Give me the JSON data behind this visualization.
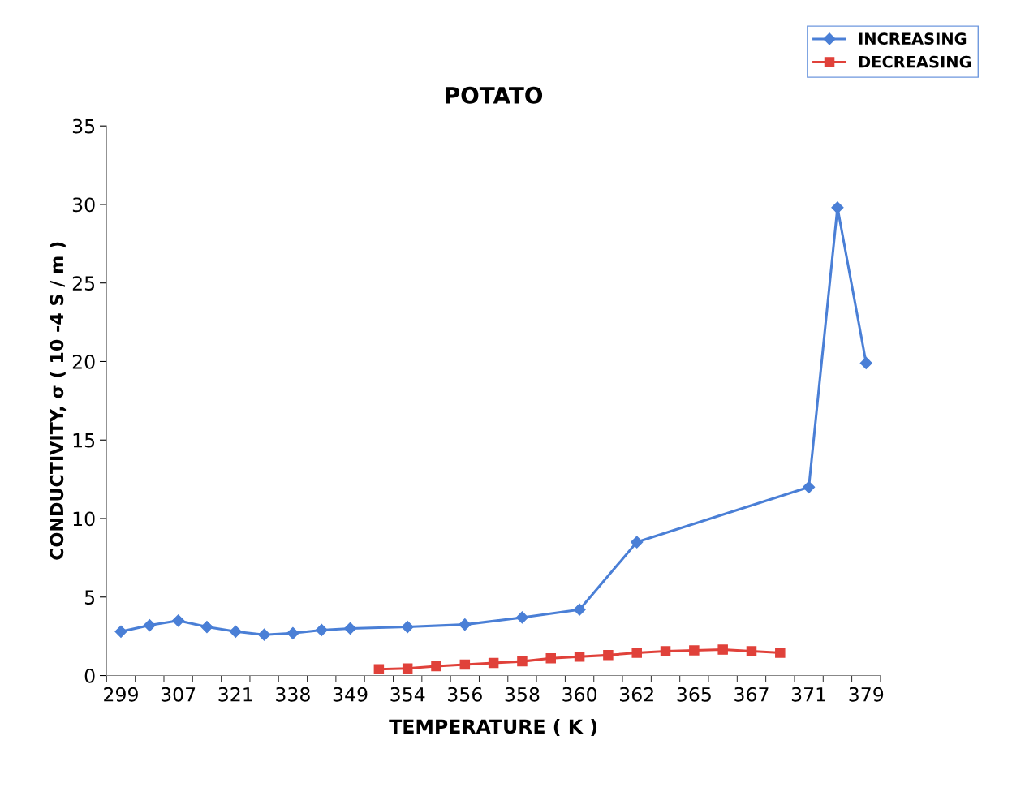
{
  "chart_data": {
    "type": "line",
    "title": "POTATO",
    "xlabel": "TEMPERATURE ( K )",
    "ylabel": "CONDUCTIVITY, σ ( 10 -4 S / m )",
    "categories": [
      "299",
      null,
      "307",
      null,
      "321",
      null,
      "338",
      null,
      "349",
      null,
      "354",
      null,
      "356",
      null,
      "358",
      null,
      "360",
      null,
      "362",
      null,
      "365",
      null,
      "367",
      null,
      "371",
      null,
      "379"
    ],
    "series": [
      {
        "name": "INCREASING",
        "color": "#4a7fd6",
        "marker": "diamond",
        "values": [
          2.8,
          3.2,
          3.5,
          3.1,
          2.8,
          2.6,
          2.7,
          2.9,
          3.0,
          null,
          3.1,
          null,
          3.25,
          null,
          3.7,
          null,
          4.2,
          null,
          8.5,
          null,
          null,
          null,
          null,
          null,
          12.0,
          29.8,
          19.9
        ]
      },
      {
        "name": "DECREASING",
        "color": "#e0413a",
        "marker": "square",
        "values": [
          null,
          null,
          null,
          null,
          null,
          null,
          null,
          null,
          null,
          0.4,
          0.45,
          0.6,
          0.7,
          0.8,
          0.9,
          1.1,
          1.2,
          1.3,
          1.45,
          1.55,
          1.6,
          1.65,
          1.55,
          1.45,
          null,
          null,
          null
        ]
      }
    ],
    "ylim": [
      0,
      35
    ],
    "yticks": [
      0,
      5,
      10,
      15,
      20,
      25,
      30,
      35
    ],
    "grid": false,
    "legend": "top right",
    "line_style": "solid"
  }
}
